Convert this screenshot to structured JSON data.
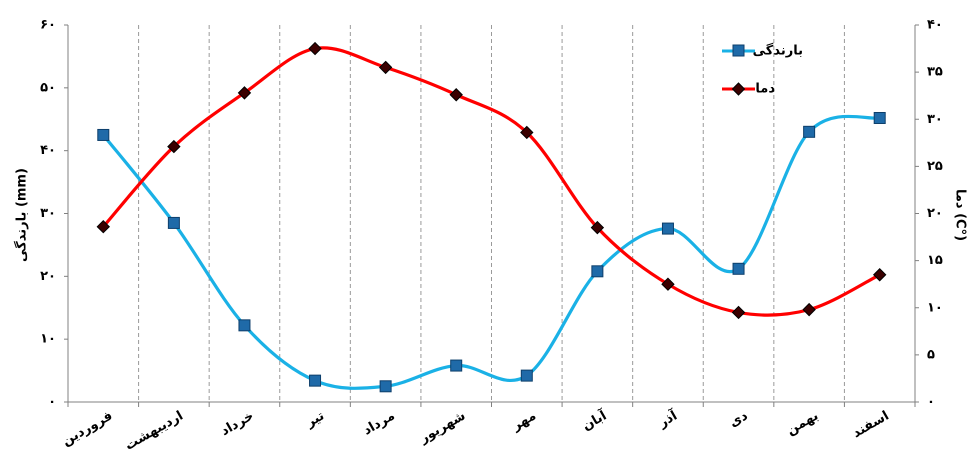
{
  "chart_data": {
    "type": "line",
    "categories": [
      "فروردین",
      "اردیبهشت",
      "خرداد",
      "تیر",
      "مرداد",
      "شهریور",
      "مهر",
      "آبان",
      "آذر",
      "دی",
      "بهمن",
      "اسفند"
    ],
    "series": [
      {
        "name": "بارندگی",
        "axis": "left",
        "color": "#1ab1e6",
        "marker": "square",
        "values": [
          42.5,
          28.5,
          12.2,
          3.4,
          2.5,
          5.8,
          4.2,
          20.8,
          27.6,
          21.2,
          43.0,
          45.2
        ]
      },
      {
        "name": "دما",
        "axis": "right",
        "color": "#ff0000",
        "marker": "diamond",
        "values": [
          18.6,
          27.1,
          32.8,
          37.5,
          35.5,
          32.6,
          28.6,
          18.5,
          12.5,
          9.5,
          9.8,
          13.5
        ]
      }
    ],
    "y_left": {
      "label": "بارندگی (mm)",
      "ylim": [
        0,
        60
      ],
      "ticks": [
        "۰",
        "۱۰",
        "۲۰",
        "۳۰",
        "۴۰",
        "۵۰",
        "۶۰"
      ]
    },
    "y_right": {
      "label": "دما (C°)",
      "ylim": [
        0,
        40
      ],
      "ticks": [
        "۰",
        "۵",
        "۱۰",
        "۱۵",
        "۲۰",
        "۲۵",
        "۳۰",
        "۳۵",
        "۴۰"
      ]
    },
    "grid": "vertical-dashed",
    "legend": "top-right"
  }
}
